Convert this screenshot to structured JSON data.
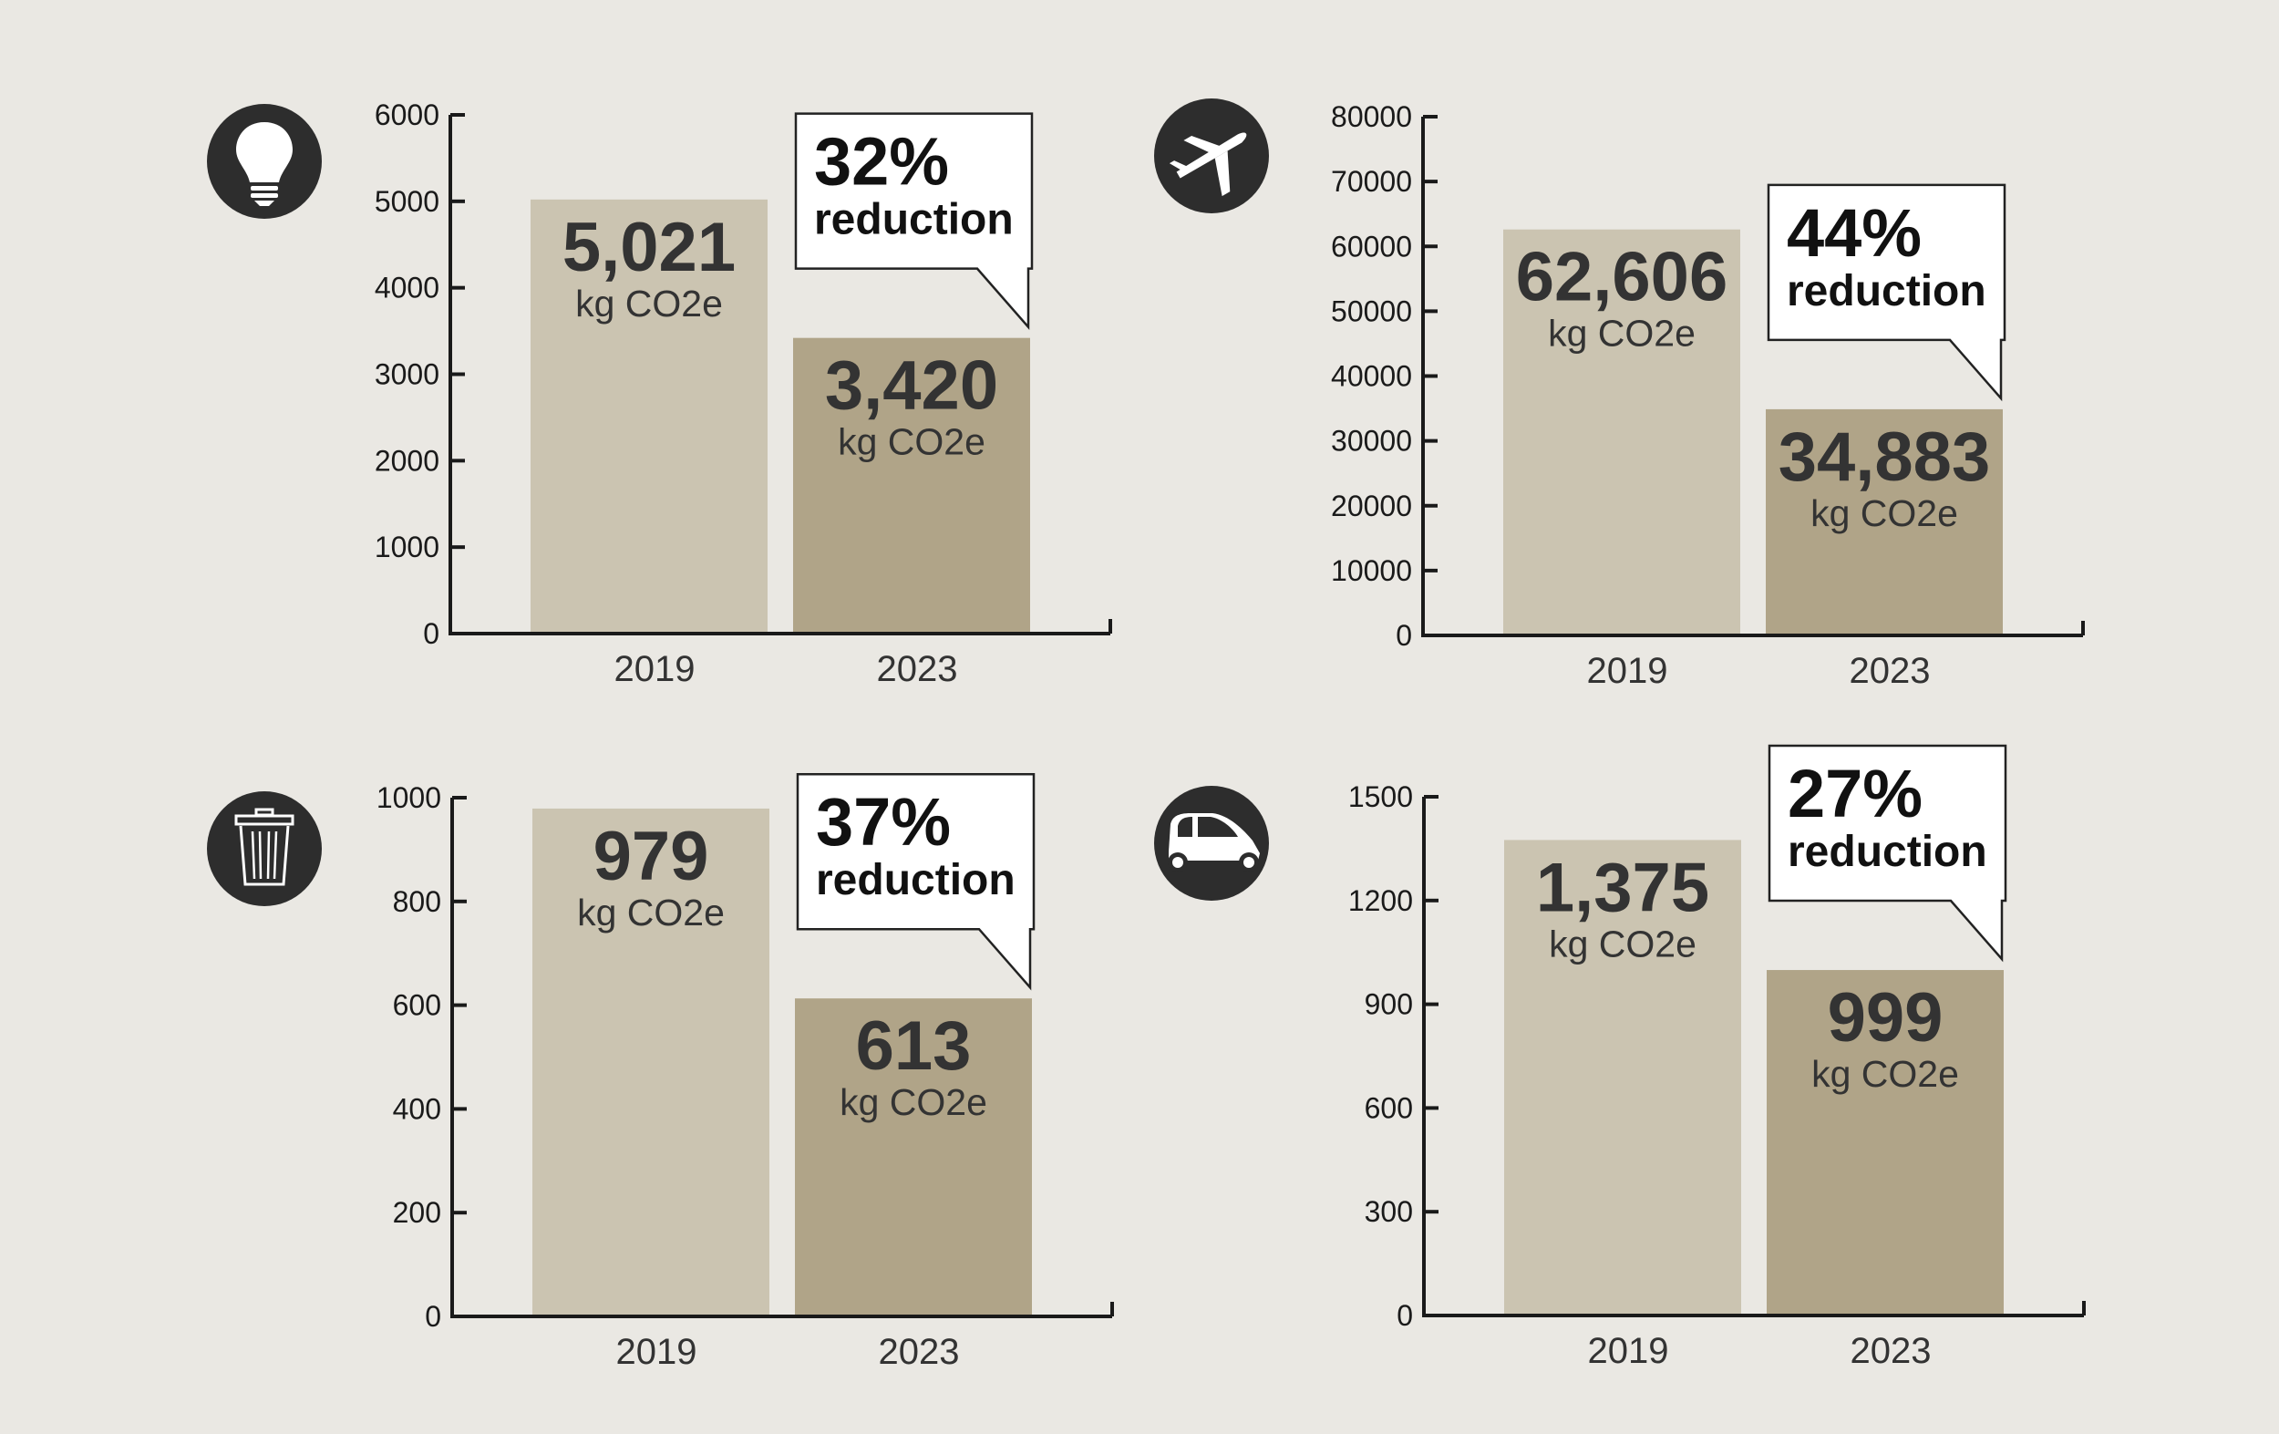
{
  "colors": {
    "background": "#eae8e3",
    "bar_2019": "#cbc4b1",
    "bar_2023": "#b0a488",
    "text": "#333333",
    "axis": "#1a1a1a",
    "callout": "#ffffff"
  },
  "chart_data": [
    {
      "type": "bar",
      "icon": "lightbulb-icon",
      "categories": [
        "2019",
        "2023"
      ],
      "values": [
        5021,
        3420
      ],
      "value_labels": [
        "5,021",
        "3,420"
      ],
      "unit": "kg CO2e",
      "ylim": [
        0,
        6000
      ],
      "yticks": [
        "0",
        "1000",
        "2000",
        "3000",
        "4000",
        "5000",
        "6000"
      ],
      "callout": {
        "percent": "32%",
        "text": "reduction"
      }
    },
    {
      "type": "bar",
      "icon": "airplane-icon",
      "categories": [
        "2019",
        "2023"
      ],
      "values": [
        62606,
        34883
      ],
      "value_labels": [
        "62,606",
        "34,883"
      ],
      "unit": "kg CO2e",
      "ylim": [
        0,
        80000
      ],
      "yticks": [
        "0",
        "10000",
        "20000",
        "30000",
        "40000",
        "50000",
        "60000",
        "70000",
        "80000"
      ],
      "callout": {
        "percent": "44%",
        "text": "reduction"
      }
    },
    {
      "type": "bar",
      "icon": "trash-can-icon",
      "categories": [
        "2019",
        "2023"
      ],
      "values": [
        979,
        613
      ],
      "value_labels": [
        "979",
        "613"
      ],
      "unit": "kg CO2e",
      "ylim": [
        0,
        1000
      ],
      "yticks": [
        "0",
        "200",
        "400",
        "600",
        "800",
        "1000"
      ],
      "callout": {
        "percent": "37%",
        "text": "reduction"
      }
    },
    {
      "type": "bar",
      "icon": "car-icon",
      "categories": [
        "2019",
        "2023"
      ],
      "values": [
        1375,
        999
      ],
      "value_labels": [
        "1,375",
        "999"
      ],
      "unit": "kg CO2e",
      "ylim": [
        0,
        1500
      ],
      "yticks": [
        "0",
        "300",
        "600",
        "900",
        "1200",
        "1500"
      ],
      "callout": {
        "percent": "27%",
        "text": "reduction"
      }
    }
  ]
}
